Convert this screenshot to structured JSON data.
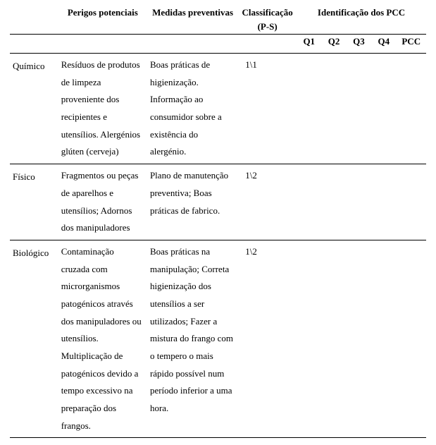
{
  "headers": {
    "perigos": "Perigos potenciais",
    "medidas": "Medidas preventivas",
    "classificacao_line1": "Classificação",
    "classificacao_line2": "(P-S)",
    "identificacao": "Identificação dos PCC",
    "q1": "Q1",
    "q2": "Q2",
    "q3": "Q3",
    "q4": "Q4",
    "pcc": "PCC"
  },
  "rows": [
    {
      "categoria": "Químico",
      "perigos": "Resíduos de produtos de limpeza proveniente dos recipientes e utensílios. Alergénios glúten (cerveja)",
      "medidas": "Boas práticas de higienização. Informação ao consumidor sobre a existência do alergénio.",
      "classificacao": "1\\1",
      "q1": "",
      "q2": "",
      "q3": "",
      "q4": "",
      "pcc": ""
    },
    {
      "categoria": "Físico",
      "perigos": "Fragmentos ou peças de aparelhos e utensílios; Adornos dos manipuladores",
      "medidas": "Plano de manutenção preventiva; Boas práticas de fabrico.",
      "classificacao": "1\\2",
      "q1": "",
      "q2": "",
      "q3": "",
      "q4": "",
      "pcc": ""
    },
    {
      "categoria": "Biológico",
      "perigos": "Contaminação cruzada com microrganismos patogénicos através dos manipuladores ou utensílios. Multiplicação de patogénicos devido a tempo excessivo na preparação dos frangos.",
      "medidas": "Boas práticas na manipulação; Correta higienização dos utensílios a ser utilizados; Fazer a mistura do frango com o tempero o mais rápido possível num período inferior a uma hora.",
      "classificacao": "1\\2",
      "q1": "",
      "q2": "",
      "q3": "",
      "q4": "",
      "pcc": ""
    }
  ]
}
